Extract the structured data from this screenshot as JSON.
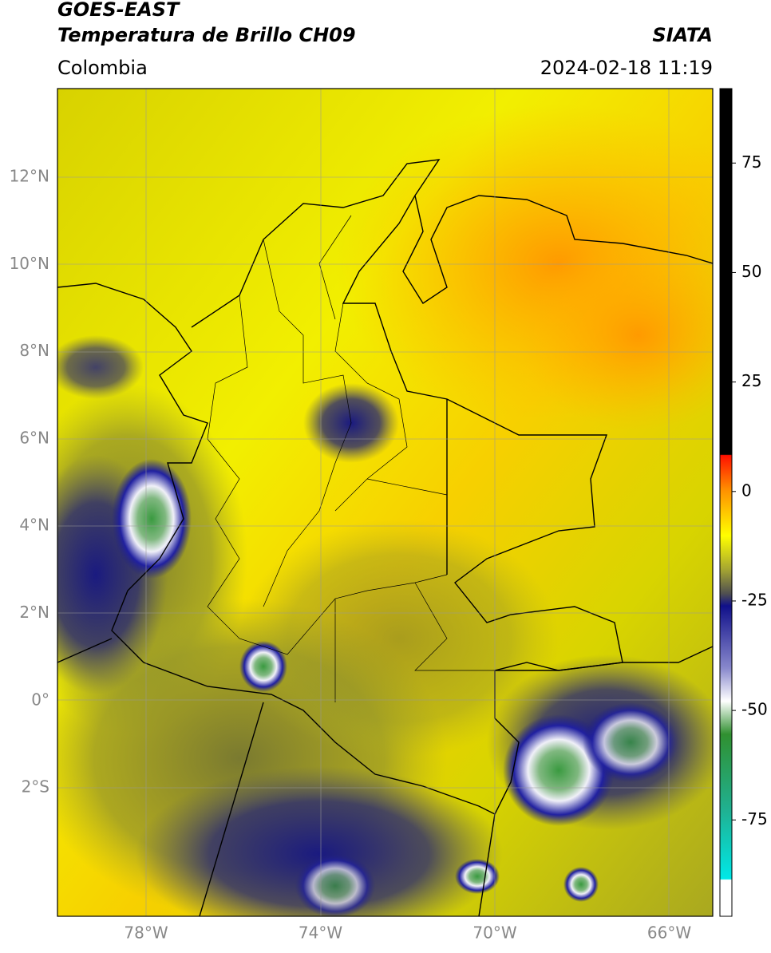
{
  "header": {
    "title": "GOES-EAST",
    "subtitle": "Temperatura de Brillo CH09",
    "source": "SIATA",
    "region": "Colombia",
    "datetime": "2024-02-18 11:19"
  },
  "map": {
    "lat_ticks": [
      "12°N",
      "10°N",
      "8°N",
      "6°N",
      "4°N",
      "2°N",
      "0°",
      "2°S"
    ],
    "lon_ticks": [
      "78°W",
      "74°W",
      "70°W",
      "66°W"
    ]
  },
  "colorbar": {
    "lim": [
      -97,
      92
    ],
    "ticks": [
      75,
      50,
      25,
      0,
      -25,
      -50,
      -75
    ]
  }
}
